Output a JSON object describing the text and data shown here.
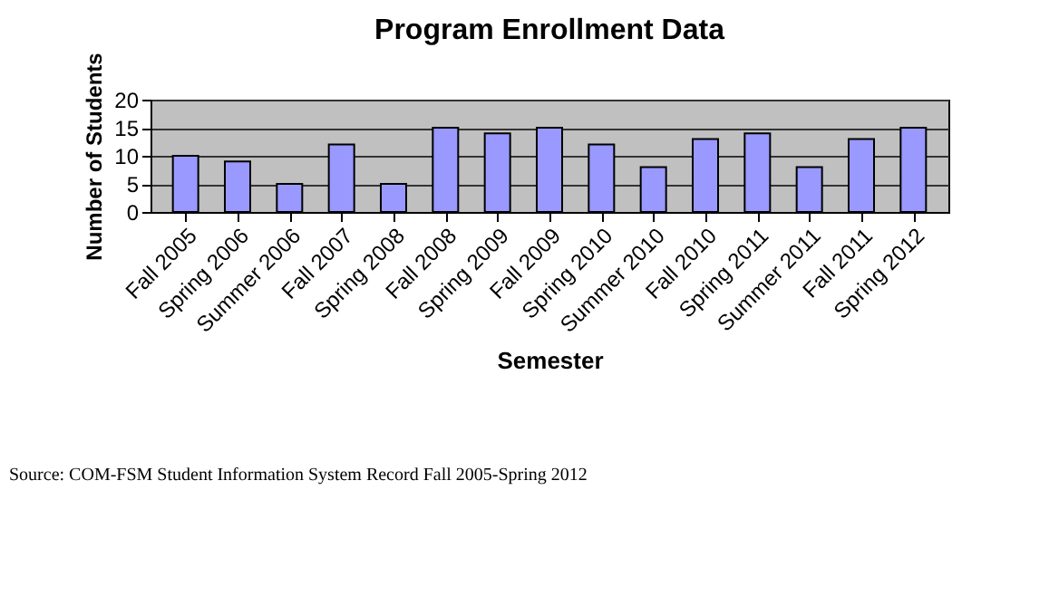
{
  "chart_data": {
    "type": "bar",
    "title": "Program Enrollment Data",
    "xlabel": "Semester",
    "ylabel": "Number of Students",
    "categories": [
      "Fall 2005",
      "Spring 2006",
      "Summer 2006",
      "Fall 2007",
      "Spring 2008",
      "Fall 2008",
      "Spring 2009",
      "Fall 2009",
      "Spring 2010",
      "Summer 2010",
      "Fall 2010",
      "Spring 2011",
      "Summer 2011",
      "Fall 2011",
      "Spring 2012"
    ],
    "values": [
      10,
      9,
      5,
      12,
      5,
      15,
      14,
      15,
      12,
      8,
      13,
      14,
      8,
      13,
      15
    ],
    "color": "#9999ff",
    "ylim": [
      0,
      20
    ],
    "yticks": [
      0,
      5,
      10,
      15,
      20
    ],
    "grid": "y",
    "annotations": [
      "Source: COM-FSM Student Information System Record Fall 2005-Spring 2012"
    ]
  }
}
